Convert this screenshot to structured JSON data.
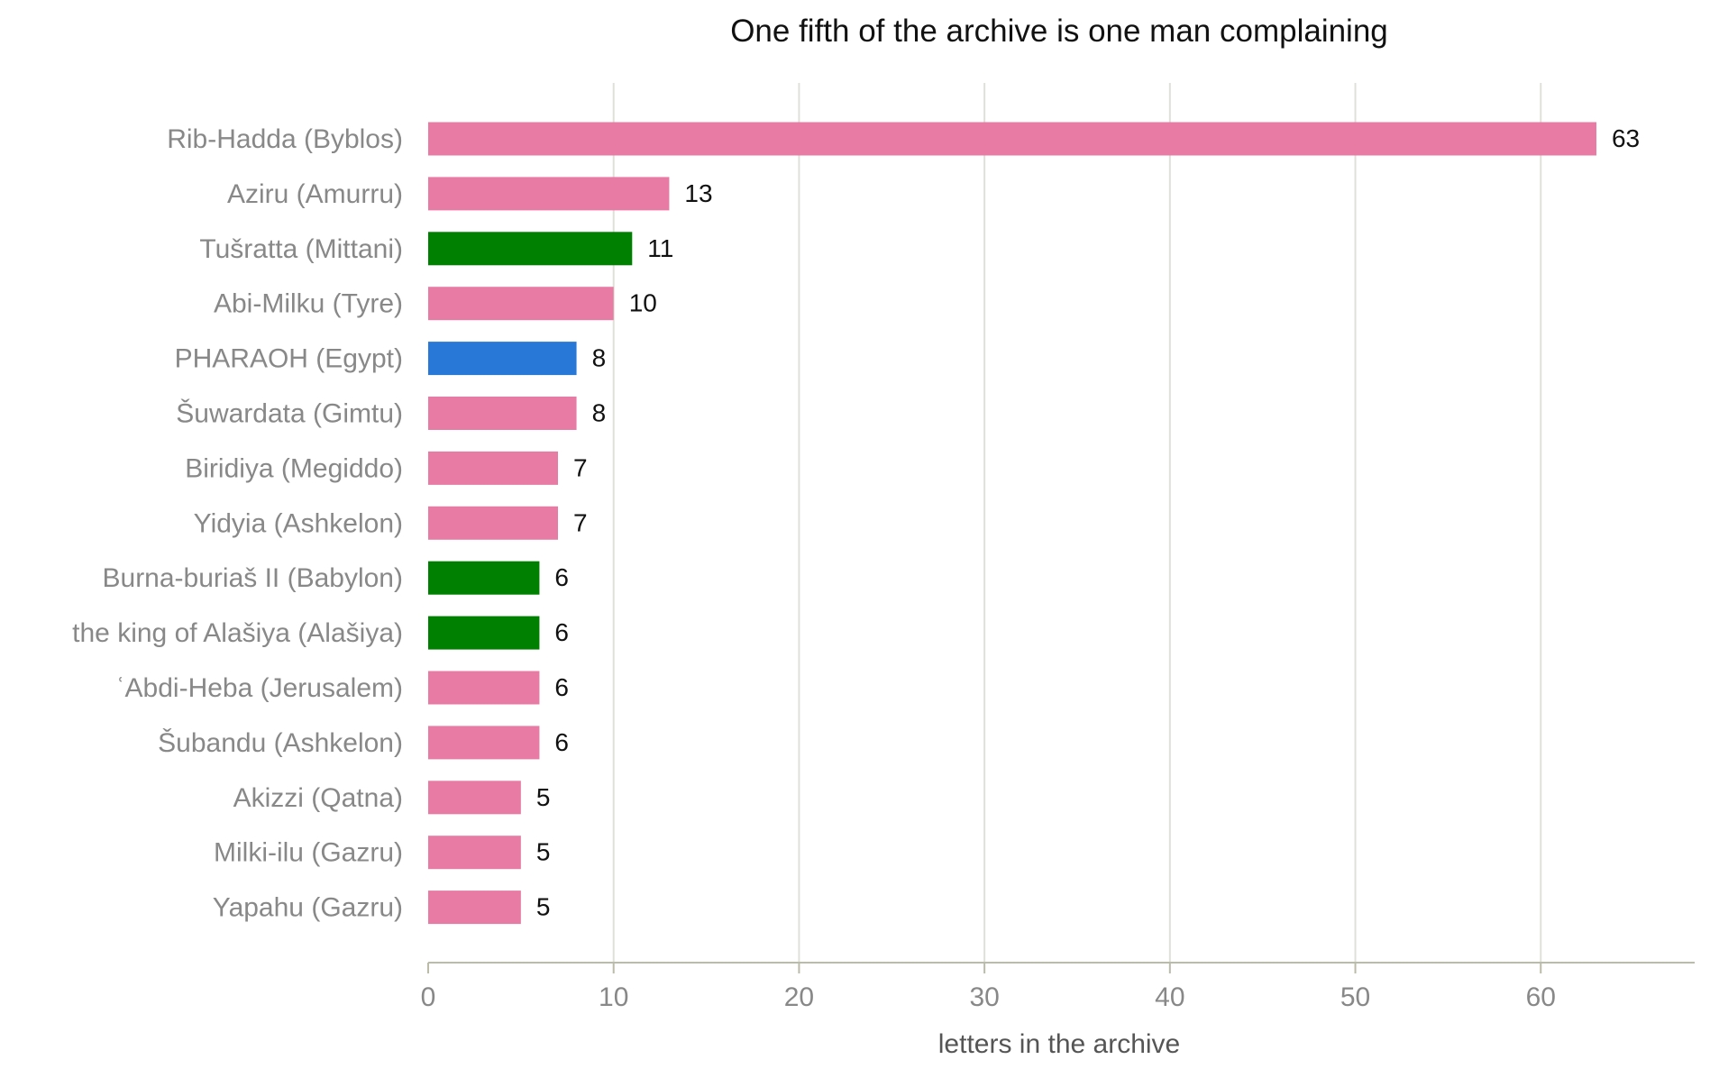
{
  "chart_data": {
    "type": "bar",
    "orientation": "horizontal",
    "title": "One fifth of the archive is one man complaining",
    "xlabel": "letters in the archive",
    "ylabel": "",
    "xlim": [
      0,
      68.3
    ],
    "xticks": [
      0,
      10,
      20,
      30,
      40,
      50,
      60
    ],
    "grid": "vertical",
    "legend": "none",
    "categories": [
      "Rib-Hadda  (Byblos)",
      "Aziru  (Amurru)",
      "Tušratta  (Mittani)",
      "Abi-Milku  (Tyre)",
      "PHARAOH  (Egypt)",
      "Šuwardata  (Gimtu)",
      "Biridiya  (Megiddo)",
      "Yidyia  (Ashkelon)",
      "Burna-buriaš II  (Babylon)",
      "the king of Alašiya  (Alašiya)",
      "ʿAbdi-Heba  (Jerusalem)",
      "Šubandu  (Ashkelon)",
      "Akizzi  (Qatna)",
      "Milki-ilu  (Gazru)",
      "Yapahu  (Gazru)"
    ],
    "values": [
      63,
      13,
      11,
      10,
      8,
      8,
      7,
      7,
      6,
      6,
      6,
      6,
      5,
      5,
      5
    ],
    "bar_colors": [
      "#e87ba3",
      "#e87ba3",
      "#008000",
      "#e87ba3",
      "#2878d8",
      "#e87ba3",
      "#e87ba3",
      "#e87ba3",
      "#008000",
      "#008000",
      "#e87ba3",
      "#e87ba3",
      "#e87ba3",
      "#e87ba3",
      "#e87ba3"
    ],
    "colors": {
      "vassal": "#e87ba3",
      "great_king": "#008000",
      "pharaoh": "#2878d8",
      "category_label": "#888888",
      "tick_label": "#888888",
      "axis": "#bbbbaa",
      "grid": "#e0e0da",
      "title": "#111111",
      "value_label": "#111111"
    }
  }
}
